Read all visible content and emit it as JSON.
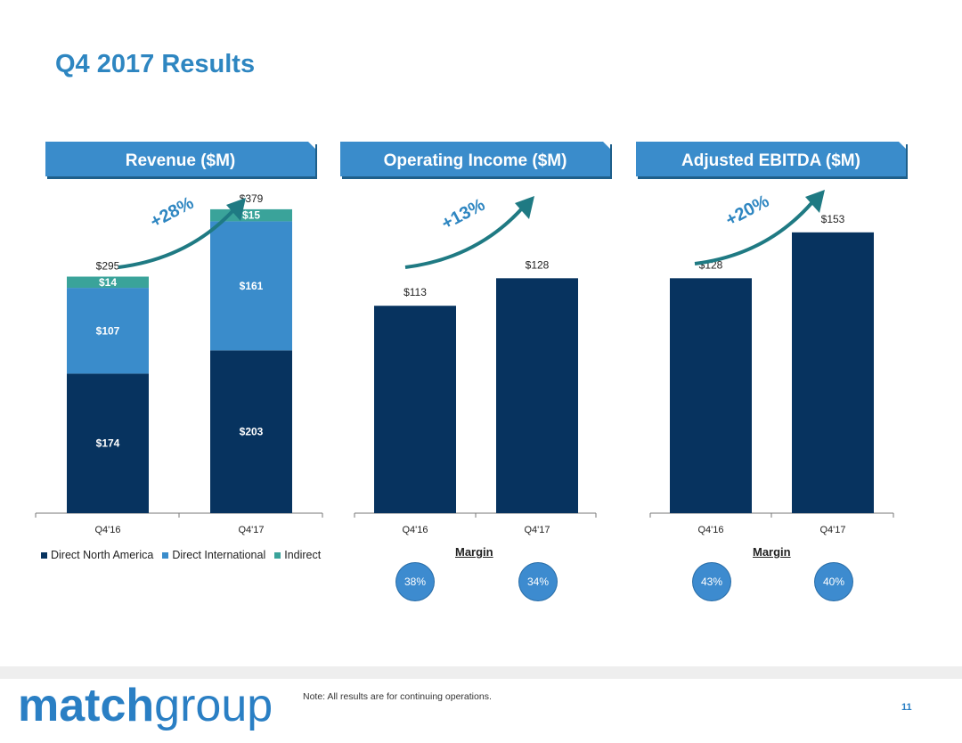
{
  "page": {
    "title": "Q4 2017 Results",
    "note": "Note: All results are for continuing operations.",
    "page_number": "11",
    "logo_part1": "match",
    "logo_part2": "group",
    "margin_label": "Margin"
  },
  "colors": {
    "dark_navy": "#07335f",
    "mid_blue": "#3a8ccb",
    "teal": "#3aa39a",
    "banner": "#3a8ccb",
    "arrow": "#1f7a83",
    "growth_text": "#2e86c1"
  },
  "chart_data": [
    {
      "type": "bar",
      "stacked": true,
      "title": "Revenue ($M)",
      "growth_label": "+28%",
      "categories": [
        "Q4'16",
        "Q4'17"
      ],
      "series": [
        {
          "name": "Direct North America",
          "values": [
            174,
            203
          ],
          "labels": [
            "$174",
            "$203"
          ],
          "color": "#07335f"
        },
        {
          "name": "Direct International",
          "values": [
            107,
            161
          ],
          "labels": [
            "$107",
            "$161"
          ],
          "color": "#3a8ccb"
        },
        {
          "name": "Indirect",
          "values": [
            14,
            15
          ],
          "labels": [
            "$14",
            "$15"
          ],
          "color": "#3aa39a"
        }
      ],
      "totals": [
        295,
        379
      ],
      "total_labels": [
        "$295",
        "$379"
      ],
      "legend_position": "bottom"
    },
    {
      "type": "bar",
      "title": "Operating Income ($M)",
      "growth_label": "+13%",
      "categories": [
        "Q4'16",
        "Q4'17"
      ],
      "values": [
        113,
        128
      ],
      "value_labels": [
        "$113",
        "$128"
      ],
      "margins": [
        "38%",
        "34%"
      ]
    },
    {
      "type": "bar",
      "title": "Adjusted EBITDA ($M)",
      "growth_label": "+20%",
      "categories": [
        "Q4'16",
        "Q4'17"
      ],
      "values": [
        128,
        153
      ],
      "value_labels": [
        "$128",
        "$153"
      ],
      "margins": [
        "43%",
        "40%"
      ]
    }
  ]
}
